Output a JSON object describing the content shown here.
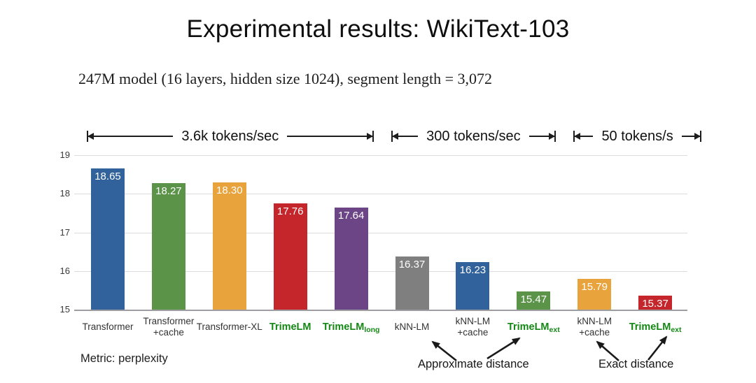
{
  "slide": {
    "title": "Experimental results:  WikiText-103",
    "subtitle": "247M model (16 layers, hidden size 1024), segment length = 3,072",
    "metric_note": "Metric: perplexity"
  },
  "chart_data": {
    "type": "bar",
    "title": "Experimental results: WikiText-103",
    "xlabel": "",
    "ylabel": "perplexity",
    "ylim": [
      15,
      19
    ],
    "yticks": [
      15,
      16,
      17,
      18,
      19
    ],
    "grid": true,
    "legend": "none",
    "categories": [
      {
        "label": "Transformer"
      },
      {
        "label": "Transformer",
        "label2": "+cache"
      },
      {
        "label": "Transformer-XL"
      },
      {
        "label": "TrimeLM",
        "green": true
      },
      {
        "label": "TrimeLM",
        "sub": "long",
        "green": true
      },
      {
        "label": "kNN-LM"
      },
      {
        "label": "kNN-LM",
        "label2": "+cache"
      },
      {
        "label": "TrimeLM",
        "sub": "ext",
        "green": true
      },
      {
        "label": "kNN-LM",
        "label2": "+cache"
      },
      {
        "label": "TrimeLM",
        "sub": "ext",
        "green": true
      }
    ],
    "values": [
      18.65,
      18.27,
      18.3,
      17.76,
      17.64,
      16.37,
      16.23,
      15.47,
      15.79,
      15.37
    ],
    "bar_colors": [
      "#31629B",
      "#5B9349",
      "#E8A33C",
      "#C5262C",
      "#6C4587",
      "#7F7F7F",
      "#31629B",
      "#5B9349",
      "#E8A33C",
      "#C5262C"
    ],
    "speed_groups": [
      {
        "label": "3.6k tokens/sec",
        "from": 0,
        "to": 4
      },
      {
        "label": "300 tokens/sec",
        "from": 5,
        "to": 7
      },
      {
        "label": "50 tokens/s",
        "from": 8,
        "to": 9
      }
    ],
    "annotations": [
      {
        "label": "Approximate distance",
        "targets": [
          6,
          7
        ]
      },
      {
        "label": "Exact distance",
        "targets": [
          8,
          9
        ]
      }
    ]
  },
  "colors": {
    "highlight_green": "#148814",
    "grid": "#dcdcdf",
    "axis_line": "#9e9ea2",
    "value_label": "#ffffff",
    "arrow": "#1a1a1a"
  }
}
